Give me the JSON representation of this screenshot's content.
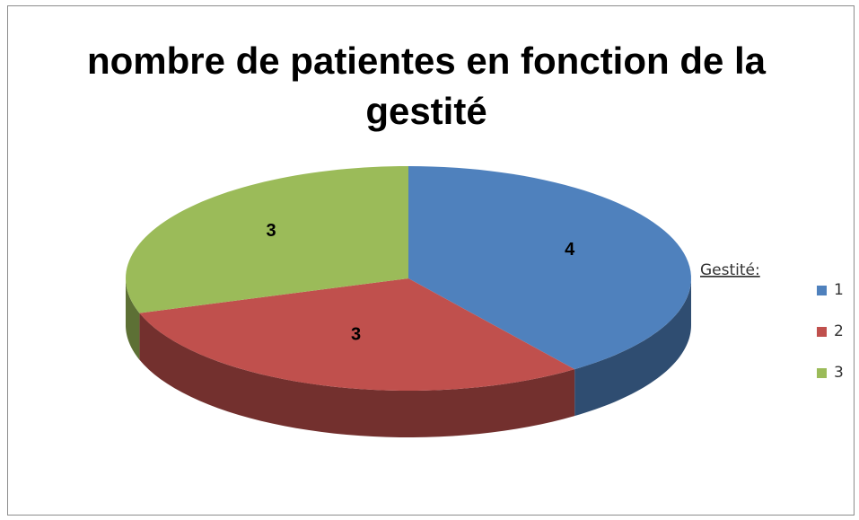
{
  "chart_data": {
    "type": "pie",
    "title": "nombre de patientes en fonction de la gestité",
    "legend_title": "Gestité:",
    "legend": "right",
    "categories": [
      "1",
      "2",
      "3"
    ],
    "values": [
      4,
      3,
      3
    ],
    "colors": [
      "#4f81bd",
      "#c0504d",
      "#9bbb59"
    ]
  }
}
